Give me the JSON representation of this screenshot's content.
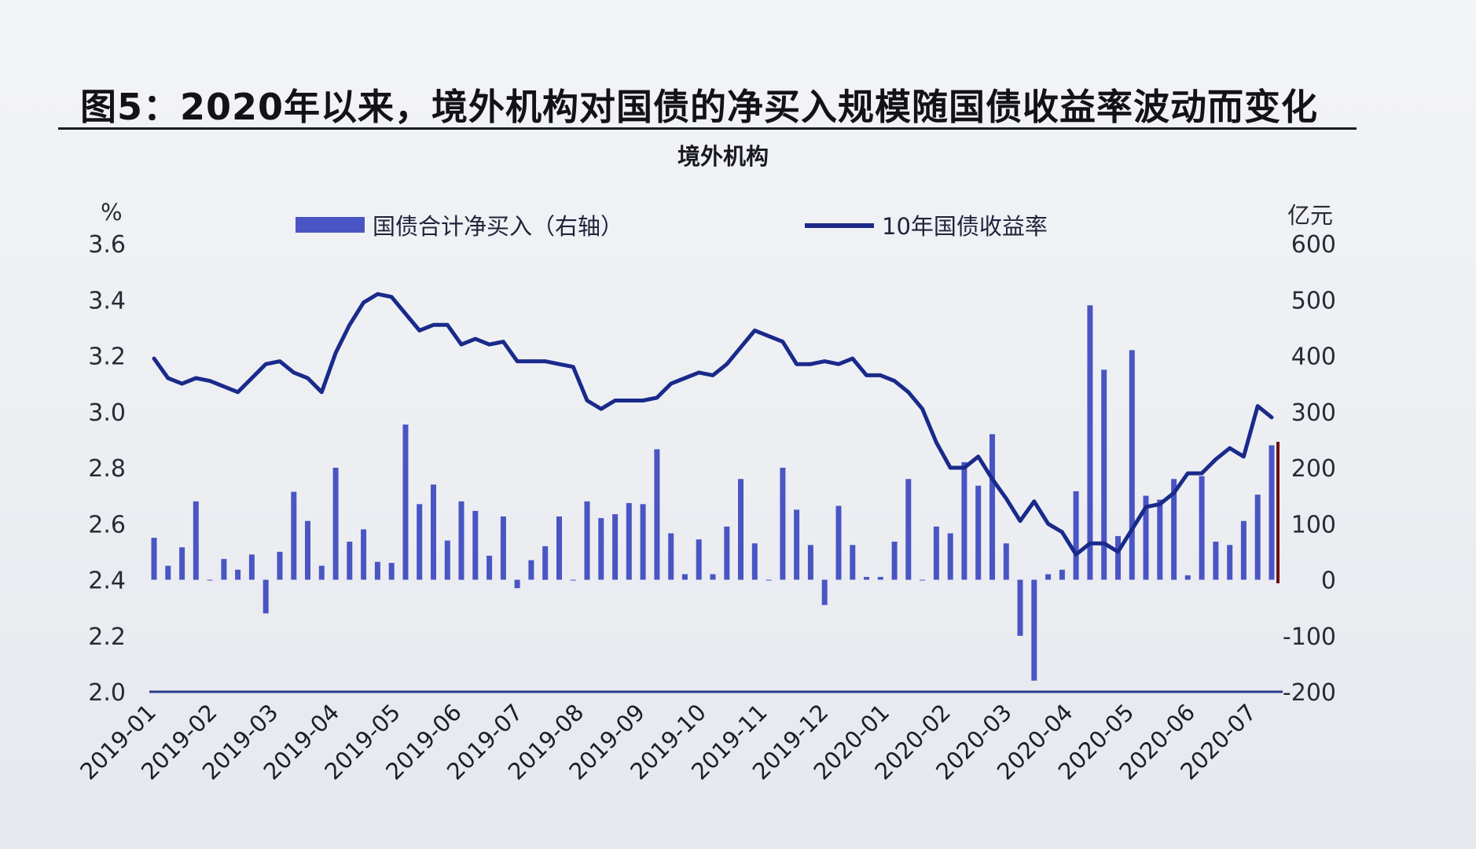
{
  "figure": {
    "title": "图5：2020年以来，境外机构对国债的净买入规模随国债收益率波动而变化",
    "subtitle": "境外机构"
  },
  "chart_data": {
    "type": "bar+line",
    "left_axis": {
      "unit": "%",
      "range": [
        2.0,
        3.6
      ],
      "ticks": [
        "3.6",
        "3.4",
        "3.2",
        "3.0",
        "2.8",
        "2.6",
        "2.4",
        "2.2",
        "2.0"
      ]
    },
    "right_axis": {
      "unit": "亿元",
      "range": [
        -200,
        600
      ],
      "ticks": [
        "600",
        "500",
        "400",
        "300",
        "200",
        "100",
        "0",
        "-100",
        "-200"
      ]
    },
    "x_labels": [
      "2019-01",
      "2019-02",
      "2019-03",
      "2019-04",
      "2019-05",
      "2019-06",
      "2019-07",
      "2019-08",
      "2019-09",
      "2019-10",
      "2019-11",
      "2019-12",
      "2020-01",
      "2020-02",
      "2020-03",
      "2020-04",
      "2020-05",
      "2020-06",
      "2020-07"
    ],
    "legend": [
      {
        "name": "国债合计净买入（右轴）",
        "color": "#4a55c4",
        "kind": "bar"
      },
      {
        "name": "10年国债收益率",
        "color": "#1a2a8a",
        "kind": "line"
      }
    ],
    "series": [
      {
        "name": "国债合计净买入（右轴）",
        "axis": "right",
        "values": [
          75,
          25,
          58,
          140,
          0,
          37,
          18,
          45,
          -60,
          50,
          157,
          105,
          25,
          200,
          68,
          90,
          32,
          30,
          277,
          135,
          170,
          70,
          140,
          123,
          43,
          113,
          -15,
          35,
          60,
          113,
          0,
          140,
          110,
          117,
          137,
          135,
          233,
          83,
          10,
          72,
          10,
          95,
          180,
          65,
          0,
          200,
          125,
          62,
          -45,
          132,
          62,
          5,
          5,
          68,
          180,
          0,
          95,
          83,
          210,
          168,
          260,
          65,
          -100,
          -180,
          10,
          18,
          158,
          490,
          375,
          78,
          410,
          150,
          143,
          180,
          8,
          185,
          68,
          62,
          105,
          152,
          240
        ]
      },
      {
        "name": "10年国债收益率",
        "axis": "left",
        "values": [
          3.19,
          3.12,
          3.1,
          3.12,
          3.11,
          3.09,
          3.07,
          3.12,
          3.17,
          3.18,
          3.14,
          3.12,
          3.07,
          3.21,
          3.31,
          3.39,
          3.42,
          3.41,
          3.35,
          3.29,
          3.31,
          3.31,
          3.24,
          3.26,
          3.24,
          3.25,
          3.18,
          3.18,
          3.18,
          3.17,
          3.16,
          3.04,
          3.01,
          3.04,
          3.04,
          3.04,
          3.05,
          3.1,
          3.12,
          3.14,
          3.13,
          3.17,
          3.23,
          3.29,
          3.27,
          3.25,
          3.17,
          3.17,
          3.18,
          3.17,
          3.19,
          3.13,
          3.13,
          3.11,
          3.07,
          3.01,
          2.89,
          2.8,
          2.8,
          2.84,
          2.76,
          2.69,
          2.61,
          2.68,
          2.6,
          2.57,
          2.49,
          2.53,
          2.53,
          2.5,
          2.58,
          2.66,
          2.67,
          2.71,
          2.78,
          2.78,
          2.83,
          2.87,
          2.84,
          3.02,
          2.98
        ]
      }
    ],
    "grid": false,
    "legend_position": "top"
  }
}
